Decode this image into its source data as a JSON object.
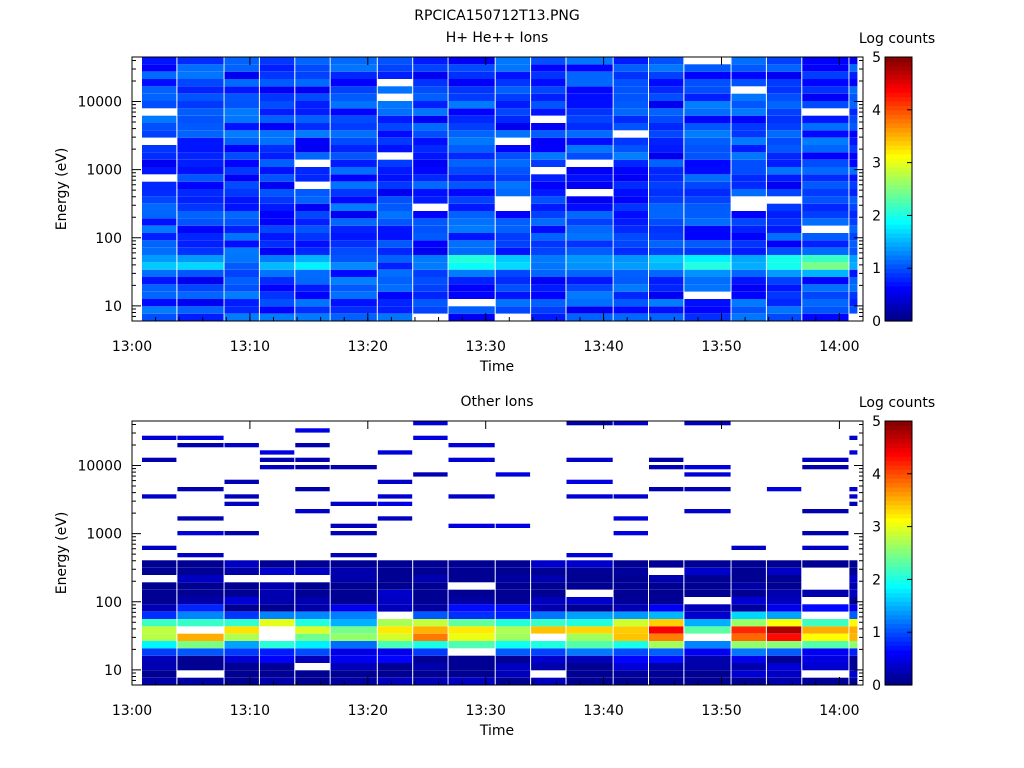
{
  "figure": {
    "title": "RPCICA150712T13.PNG"
  },
  "colors": {
    "colormap": [
      "#00007f",
      "#0000ff",
      "#007fff",
      "#00ffff",
      "#7fff7f",
      "#ffff00",
      "#ff7f00",
      "#ff0000",
      "#7f0000"
    ]
  },
  "chart_data": [
    {
      "type": "heatmap",
      "title": "H+ He++ Ions",
      "xlabel": "Time",
      "ylabel": "Energy (eV)",
      "y_scale": "log",
      "ylim": [
        6,
        45000
      ],
      "xlim": [
        "13:00",
        "14:02"
      ],
      "x_ticks": [
        "13:00",
        "13:10",
        "13:20",
        "13:30",
        "13:40",
        "13:50",
        "14:00"
      ],
      "y_ticks": [
        "10",
        "100",
        "1000",
        "10000"
      ],
      "colorbar": {
        "label": "Log counts",
        "range": [
          0,
          5
        ],
        "ticks": [
          "0",
          "1",
          "2",
          "3",
          "4",
          "5"
        ]
      },
      "time_bins": [
        "13:00",
        "13:03",
        "13:07",
        "13:10",
        "13:13",
        "13:16",
        "13:20",
        "13:23",
        "13:26",
        "13:30",
        "13:33",
        "13:36",
        "13:40",
        "13:43",
        "13:46",
        "13:50",
        "13:53",
        "13:56",
        "14:00"
      ],
      "energy_profile": {
        "low_energy_peak_eV": [
          30,
          60
        ],
        "peak_log_counts_by_time_bin": [
          1.6,
          1.7,
          1.2,
          1.5,
          1.8,
          1.2,
          1.0,
          1.5,
          2.1,
          1.6,
          1.3,
          1.4,
          1.6,
          1.8,
          2.2,
          1.4,
          2.1,
          2.4,
          1.5
        ],
        "high_energy_typical_log_counts": 0.9
      }
    },
    {
      "type": "heatmap",
      "title": "Other Ions",
      "xlabel": "Time",
      "ylabel": "Energy (eV)",
      "y_scale": "log",
      "ylim": [
        6,
        45000
      ],
      "xlim": [
        "13:00",
        "14:02"
      ],
      "x_ticks": [
        "13:00",
        "13:10",
        "13:20",
        "13:30",
        "13:40",
        "13:50",
        "14:00"
      ],
      "y_ticks": [
        "10",
        "100",
        "1000",
        "10000"
      ],
      "colorbar": {
        "label": "Log counts",
        "range": [
          0,
          5
        ],
        "ticks": [
          "0",
          "1",
          "2",
          "3",
          "4",
          "5"
        ]
      },
      "time_bins": [
        "13:00",
        "13:03",
        "13:07",
        "13:10",
        "13:13",
        "13:16",
        "13:20",
        "13:23",
        "13:26",
        "13:30",
        "13:33",
        "13:36",
        "13:40",
        "13:43",
        "13:46",
        "13:50",
        "13:53",
        "13:56",
        "14:00"
      ],
      "energy_profile": {
        "low_energy_peak_eV": [
          25,
          50
        ],
        "peak_log_counts_by_time_bin": [
          3.2,
          3.6,
          3.0,
          3.8,
          2.7,
          2.5,
          3.3,
          3.9,
          3.4,
          2.8,
          3.5,
          3.3,
          3.7,
          4.3,
          2.2,
          4.2,
          4.5,
          3.4,
          3.9
        ],
        "high_energy_typical_log_counts": 0.2
      }
    }
  ]
}
